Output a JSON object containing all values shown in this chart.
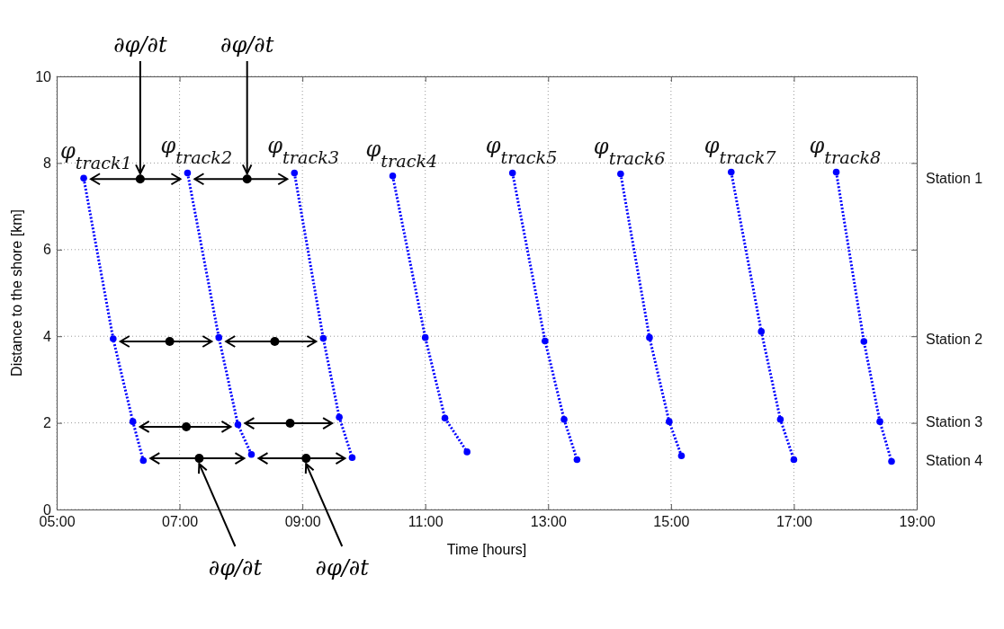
{
  "chart_data": {
    "type": "line",
    "xlabel": "Time [hours]",
    "ylabel": "Distance to the shore [km]",
    "xlim": [
      5,
      19
    ],
    "ylim": [
      0,
      10
    ],
    "xticks": [
      {
        "value": 5,
        "label": "05:00"
      },
      {
        "value": 7,
        "label": "07:00"
      },
      {
        "value": 9,
        "label": "09:00"
      },
      {
        "value": 11,
        "label": "11:00"
      },
      {
        "value": 13,
        "label": "13:00"
      },
      {
        "value": 15,
        "label": "15:00"
      },
      {
        "value": 17,
        "label": "17:00"
      },
      {
        "value": 19,
        "label": "19:00"
      }
    ],
    "yticks": [
      0,
      2,
      4,
      6,
      8,
      10
    ],
    "grid": true,
    "marker": "circle",
    "line_style": "dotted",
    "series": [
      {
        "name": "φ$_{track1}$",
        "color": "#0000ff",
        "x": [
          5.44,
          5.92,
          6.24,
          6.41
        ],
        "values": [
          7.65,
          3.94,
          2.03,
          1.13
        ]
      },
      {
        "name": "φ$_{track2}$",
        "color": "#0000ff",
        "x": [
          7.13,
          7.64,
          7.95,
          8.17
        ],
        "values": [
          7.77,
          3.97,
          1.96,
          1.27
        ]
      },
      {
        "name": "φ$_{track3}$",
        "color": "#0000ff",
        "x": [
          8.87,
          9.34,
          9.6,
          9.81
        ],
        "values": [
          7.77,
          3.95,
          2.13,
          1.2
        ]
      },
      {
        "name": "φ$_{track4}$",
        "color": "#0000ff",
        "x": [
          10.47,
          11.0,
          11.32,
          11.68
        ],
        "values": [
          7.7,
          3.97,
          2.11,
          1.33
        ]
      },
      {
        "name": "φ$_{track5}$",
        "color": "#0000ff",
        "x": [
          12.42,
          12.95,
          13.26,
          13.47
        ],
        "values": [
          7.77,
          3.89,
          2.08,
          1.15
        ]
      },
      {
        "name": "φ$_{track6}$",
        "color": "#0000ff",
        "x": [
          14.18,
          14.65,
          14.97,
          15.17
        ],
        "values": [
          7.75,
          3.97,
          2.03,
          1.24
        ]
      },
      {
        "name": "φ$_{track7}$",
        "color": "#0000ff",
        "x": [
          15.98,
          16.47,
          16.78,
          17.0
        ],
        "values": [
          7.79,
          4.11,
          2.08,
          1.15
        ]
      },
      {
        "name": "φ$_{track8}$",
        "color": "#0000ff",
        "x": [
          17.69,
          18.14,
          18.4,
          18.59
        ],
        "values": [
          7.79,
          3.88,
          2.03,
          1.11
        ]
      },
      {
        "type": "scatter",
        "color": "#000000",
        "x": [
          6.36,
          8.1,
          6.84,
          8.55,
          7.11,
          8.8,
          7.32,
          9.06
        ],
        "values": [
          7.63,
          7.63,
          3.88,
          3.88,
          1.91,
          1.99,
          1.18,
          1.18
        ]
      }
    ],
    "annotations": [
      {
        "text": "∂φ/∂t",
        "x": 6.36,
        "y": 7.63
      },
      {
        "text": "∂φ/∂t",
        "x": 8.1,
        "y": 7.63
      },
      {
        "text": "∂φ/∂t",
        "x": 7.32,
        "y": 1.18
      },
      {
        "text": "∂φ/∂t",
        "x": 9.06,
        "y": 1.18
      },
      "Station 1",
      "Station 2",
      "Station 3",
      "Station 4"
    ]
  }
}
